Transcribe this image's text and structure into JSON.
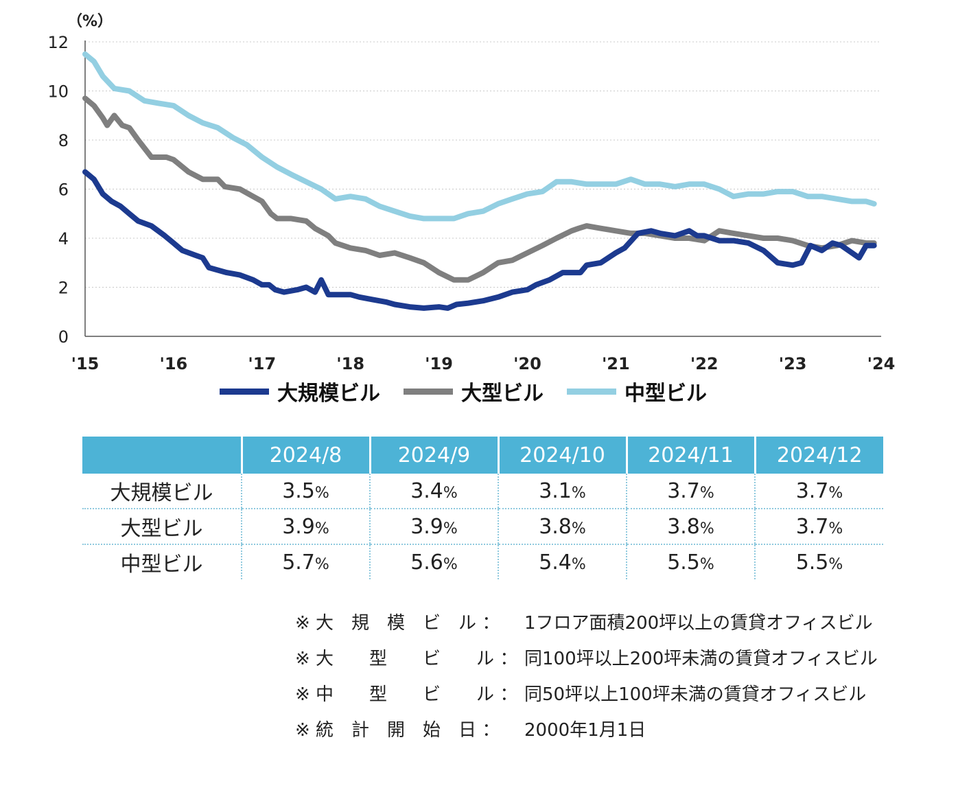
{
  "chart_data": {
    "type": "line",
    "unit_label": "（%）",
    "y_ticks": [
      "0",
      "2",
      "4",
      "6",
      "8",
      "10",
      "12"
    ],
    "ylim": [
      0,
      12
    ],
    "x_ticks": [
      "'15",
      "'16",
      "'17",
      "'18",
      "'19",
      "'20",
      "'21",
      "'22",
      "'23",
      "'24"
    ],
    "xlim": [
      2015,
      2024
    ],
    "grid": true,
    "legend_position": "bottom",
    "series": [
      {
        "name": "大規模ビル",
        "color": "#1c3a8f",
        "points": [
          [
            2015.0,
            6.7
          ],
          [
            2015.1,
            6.4
          ],
          [
            2015.2,
            5.8
          ],
          [
            2015.3,
            5.5
          ],
          [
            2015.4,
            5.3
          ],
          [
            2015.5,
            5.0
          ],
          [
            2015.6,
            4.7
          ],
          [
            2015.75,
            4.5
          ],
          [
            2015.9,
            4.1
          ],
          [
            2016.0,
            3.8
          ],
          [
            2016.1,
            3.5
          ],
          [
            2016.25,
            3.3
          ],
          [
            2016.33,
            3.2
          ],
          [
            2016.4,
            2.8
          ],
          [
            2016.5,
            2.7
          ],
          [
            2016.6,
            2.6
          ],
          [
            2016.75,
            2.5
          ],
          [
            2016.9,
            2.3
          ],
          [
            2017.0,
            2.1
          ],
          [
            2017.08,
            2.1
          ],
          [
            2017.15,
            1.9
          ],
          [
            2017.25,
            1.8
          ],
          [
            2017.4,
            1.9
          ],
          [
            2017.5,
            2.0
          ],
          [
            2017.6,
            1.8
          ],
          [
            2017.67,
            2.3
          ],
          [
            2017.75,
            1.7
          ],
          [
            2017.9,
            1.7
          ],
          [
            2018.0,
            1.7
          ],
          [
            2018.1,
            1.6
          ],
          [
            2018.25,
            1.5
          ],
          [
            2018.4,
            1.4
          ],
          [
            2018.5,
            1.3
          ],
          [
            2018.67,
            1.2
          ],
          [
            2018.83,
            1.15
          ],
          [
            2019.0,
            1.2
          ],
          [
            2019.1,
            1.15
          ],
          [
            2019.2,
            1.3
          ],
          [
            2019.33,
            1.35
          ],
          [
            2019.5,
            1.45
          ],
          [
            2019.67,
            1.6
          ],
          [
            2019.83,
            1.8
          ],
          [
            2020.0,
            1.9
          ],
          [
            2020.1,
            2.1
          ],
          [
            2020.25,
            2.3
          ],
          [
            2020.4,
            2.6
          ],
          [
            2020.5,
            2.6
          ],
          [
            2020.6,
            2.6
          ],
          [
            2020.67,
            2.9
          ],
          [
            2020.83,
            3.0
          ],
          [
            2021.0,
            3.4
          ],
          [
            2021.1,
            3.6
          ],
          [
            2021.25,
            4.2
          ],
          [
            2021.4,
            4.3
          ],
          [
            2021.5,
            4.2
          ],
          [
            2021.67,
            4.1
          ],
          [
            2021.83,
            4.3
          ],
          [
            2021.92,
            4.1
          ],
          [
            2022.0,
            4.1
          ],
          [
            2022.17,
            3.9
          ],
          [
            2022.33,
            3.9
          ],
          [
            2022.5,
            3.8
          ],
          [
            2022.67,
            3.5
          ],
          [
            2022.83,
            3.0
          ],
          [
            2023.0,
            2.9
          ],
          [
            2023.1,
            3.0
          ],
          [
            2023.2,
            3.7
          ],
          [
            2023.33,
            3.5
          ],
          [
            2023.45,
            3.8
          ],
          [
            2023.55,
            3.7
          ],
          [
            2023.67,
            3.4
          ],
          [
            2023.75,
            3.2
          ],
          [
            2023.83,
            3.7
          ],
          [
            2023.92,
            3.7
          ]
        ]
      },
      {
        "name": "大型ビル",
        "color": "#7f7f7f",
        "points": [
          [
            2015.0,
            9.7
          ],
          [
            2015.1,
            9.4
          ],
          [
            2015.2,
            8.9
          ],
          [
            2015.25,
            8.6
          ],
          [
            2015.33,
            9.0
          ],
          [
            2015.42,
            8.6
          ],
          [
            2015.5,
            8.5
          ],
          [
            2015.6,
            8.0
          ],
          [
            2015.75,
            7.3
          ],
          [
            2015.92,
            7.3
          ],
          [
            2016.0,
            7.2
          ],
          [
            2016.17,
            6.7
          ],
          [
            2016.33,
            6.4
          ],
          [
            2016.5,
            6.4
          ],
          [
            2016.58,
            6.1
          ],
          [
            2016.75,
            6.0
          ],
          [
            2016.9,
            5.7
          ],
          [
            2017.0,
            5.5
          ],
          [
            2017.1,
            5.0
          ],
          [
            2017.17,
            4.8
          ],
          [
            2017.33,
            4.8
          ],
          [
            2017.5,
            4.7
          ],
          [
            2017.6,
            4.4
          ],
          [
            2017.75,
            4.1
          ],
          [
            2017.83,
            3.8
          ],
          [
            2018.0,
            3.6
          ],
          [
            2018.17,
            3.5
          ],
          [
            2018.33,
            3.3
          ],
          [
            2018.5,
            3.4
          ],
          [
            2018.67,
            3.2
          ],
          [
            2018.83,
            3.0
          ],
          [
            2019.0,
            2.6
          ],
          [
            2019.17,
            2.3
          ],
          [
            2019.33,
            2.3
          ],
          [
            2019.5,
            2.6
          ],
          [
            2019.67,
            3.0
          ],
          [
            2019.83,
            3.1
          ],
          [
            2020.0,
            3.4
          ],
          [
            2020.17,
            3.7
          ],
          [
            2020.33,
            4.0
          ],
          [
            2020.5,
            4.3
          ],
          [
            2020.58,
            4.4
          ],
          [
            2020.67,
            4.5
          ],
          [
            2020.83,
            4.4
          ],
          [
            2021.0,
            4.3
          ],
          [
            2021.17,
            4.2
          ],
          [
            2021.33,
            4.2
          ],
          [
            2021.5,
            4.1
          ],
          [
            2021.67,
            4.0
          ],
          [
            2021.83,
            4.0
          ],
          [
            2022.0,
            3.9
          ],
          [
            2022.17,
            4.3
          ],
          [
            2022.33,
            4.2
          ],
          [
            2022.5,
            4.1
          ],
          [
            2022.67,
            4.0
          ],
          [
            2022.83,
            4.0
          ],
          [
            2023.0,
            3.9
          ],
          [
            2023.17,
            3.7
          ],
          [
            2023.33,
            3.6
          ],
          [
            2023.5,
            3.7
          ],
          [
            2023.67,
            3.9
          ],
          [
            2023.83,
            3.8
          ],
          [
            2023.92,
            3.8
          ]
        ]
      },
      {
        "name": "中型ビル",
        "color": "#93cfe2",
        "points": [
          [
            2015.0,
            11.5
          ],
          [
            2015.1,
            11.2
          ],
          [
            2015.2,
            10.6
          ],
          [
            2015.33,
            10.1
          ],
          [
            2015.5,
            10.0
          ],
          [
            2015.67,
            9.6
          ],
          [
            2015.83,
            9.5
          ],
          [
            2016.0,
            9.4
          ],
          [
            2016.17,
            9.0
          ],
          [
            2016.33,
            8.7
          ],
          [
            2016.5,
            8.5
          ],
          [
            2016.67,
            8.1
          ],
          [
            2016.83,
            7.8
          ],
          [
            2017.0,
            7.3
          ],
          [
            2017.17,
            6.9
          ],
          [
            2017.33,
            6.6
          ],
          [
            2017.5,
            6.3
          ],
          [
            2017.67,
            6.0
          ],
          [
            2017.83,
            5.6
          ],
          [
            2018.0,
            5.7
          ],
          [
            2018.17,
            5.6
          ],
          [
            2018.33,
            5.3
          ],
          [
            2018.5,
            5.1
          ],
          [
            2018.67,
            4.9
          ],
          [
            2018.83,
            4.8
          ],
          [
            2019.0,
            4.8
          ],
          [
            2019.17,
            4.8
          ],
          [
            2019.33,
            5.0
          ],
          [
            2019.5,
            5.1
          ],
          [
            2019.67,
            5.4
          ],
          [
            2019.83,
            5.6
          ],
          [
            2020.0,
            5.8
          ],
          [
            2020.17,
            5.9
          ],
          [
            2020.33,
            6.3
          ],
          [
            2020.5,
            6.3
          ],
          [
            2020.67,
            6.2
          ],
          [
            2020.83,
            6.2
          ],
          [
            2021.0,
            6.2
          ],
          [
            2021.17,
            6.4
          ],
          [
            2021.33,
            6.2
          ],
          [
            2021.5,
            6.2
          ],
          [
            2021.67,
            6.1
          ],
          [
            2021.83,
            6.2
          ],
          [
            2022.0,
            6.2
          ],
          [
            2022.17,
            6.0
          ],
          [
            2022.33,
            5.7
          ],
          [
            2022.5,
            5.8
          ],
          [
            2022.67,
            5.8
          ],
          [
            2022.83,
            5.9
          ],
          [
            2023.0,
            5.9
          ],
          [
            2023.17,
            5.7
          ],
          [
            2023.33,
            5.7
          ],
          [
            2023.5,
            5.6
          ],
          [
            2023.67,
            5.5
          ],
          [
            2023.83,
            5.5
          ],
          [
            2023.92,
            5.4
          ]
        ]
      }
    ]
  },
  "table": {
    "header": [
      "",
      "2024/8",
      "2024/9",
      "2024/10",
      "2024/11",
      "2024/12"
    ],
    "percent_sign": "%",
    "rows": [
      {
        "label": "大規模ビル",
        "values": [
          "3.5",
          "3.4",
          "3.1",
          "3.7",
          "3.7"
        ]
      },
      {
        "label": "大型ビル",
        "values": [
          "3.9",
          "3.9",
          "3.8",
          "3.8",
          "3.7"
        ]
      },
      {
        "label": "中型ビル",
        "values": [
          "5.7",
          "5.6",
          "5.4",
          "5.5",
          "5.5"
        ]
      }
    ]
  },
  "notes": [
    {
      "label": "※ 大　規　模　ビ　ル ：",
      "text": "1フロア面積200坪以上の賃貸オフィスビル"
    },
    {
      "label": "※ 大　　型　　ビ　　ル ：",
      "text": "同100坪以上200坪未満の賃貸オフィスビル"
    },
    {
      "label": "※ 中　　型　　ビ　　ル ：",
      "text": "同50坪以上100坪未満の賃貸オフィスビル"
    },
    {
      "label": "※ 統　計　開　始　日 ：",
      "text": "2000年1月1日"
    }
  ]
}
